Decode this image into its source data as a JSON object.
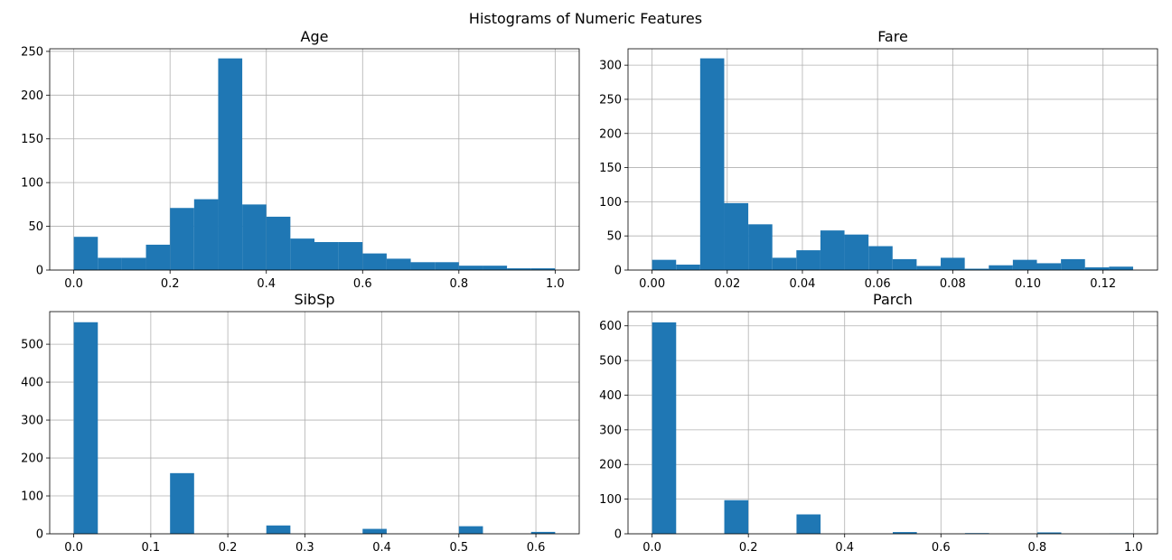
{
  "figure": {
    "title": "Histograms of Numeric Features",
    "bar_color": "#1f77b4",
    "grid_color": "#b0b0b0",
    "grid": true
  },
  "chart_data": [
    {
      "type": "bar",
      "title": "Age",
      "xlabel": "",
      "ylabel": "",
      "xlim": [
        -0.05,
        1.05
      ],
      "ylim": [
        0,
        253
      ],
      "xticks": [
        0.0,
        0.2,
        0.4,
        0.6,
        0.8,
        1.0
      ],
      "xtick_labels": [
        "0.0",
        "0.2",
        "0.4",
        "0.6",
        "0.8",
        "1.0"
      ],
      "yticks": [
        0,
        50,
        100,
        150,
        200,
        250
      ],
      "ytick_labels": [
        "0",
        "50",
        "100",
        "150",
        "200",
        "250"
      ],
      "bin_edges": [
        0.0,
        0.05,
        0.1,
        0.15,
        0.2,
        0.25,
        0.3,
        0.35,
        0.4,
        0.45,
        0.5,
        0.55,
        0.6,
        0.65,
        0.7,
        0.75,
        0.8,
        0.85,
        0.9,
        0.95,
        1.0
      ],
      "values": [
        38,
        14,
        14,
        29,
        71,
        81,
        242,
        75,
        61,
        36,
        32,
        32,
        19,
        13,
        9,
        9,
        5,
        5,
        2,
        2
      ]
    },
    {
      "type": "bar",
      "title": "Fare",
      "xlabel": "",
      "ylabel": "",
      "xlim": [
        -0.0064,
        0.1345
      ],
      "ylim": [
        0,
        324
      ],
      "xticks": [
        0.0,
        0.02,
        0.04,
        0.06,
        0.08,
        0.1,
        0.12
      ],
      "xtick_labels": [
        "0.00",
        "0.02",
        "0.04",
        "0.06",
        "0.08",
        "0.10",
        "0.12"
      ],
      "yticks": [
        0,
        50,
        100,
        150,
        200,
        250,
        300
      ],
      "ytick_labels": [
        "0",
        "50",
        "100",
        "150",
        "200",
        "250",
        "300"
      ],
      "bin_edges": [
        0.0,
        0.0064,
        0.0128,
        0.0192,
        0.0256,
        0.032,
        0.0384,
        0.0448,
        0.0512,
        0.0576,
        0.064,
        0.0704,
        0.0768,
        0.0832,
        0.0896,
        0.096,
        0.1024,
        0.1088,
        0.1152,
        0.1216,
        0.128
      ],
      "values": [
        15,
        8,
        310,
        98,
        67,
        18,
        29,
        58,
        52,
        35,
        16,
        6,
        18,
        2,
        7,
        15,
        10,
        16,
        4,
        5
      ]
    },
    {
      "type": "bar",
      "title": "SibSp",
      "xlabel": "",
      "ylabel": "",
      "xlim": [
        -0.03125,
        0.65625
      ],
      "ylim": [
        0,
        586
      ],
      "xticks": [
        0.0,
        0.1,
        0.2,
        0.3,
        0.4,
        0.5,
        0.6
      ],
      "xtick_labels": [
        "0.0",
        "0.1",
        "0.2",
        "0.3",
        "0.4",
        "0.5",
        "0.6"
      ],
      "yticks": [
        0,
        100,
        200,
        300,
        400,
        500
      ],
      "ytick_labels": [
        "0",
        "100",
        "200",
        "300",
        "400",
        "500"
      ],
      "bin_edges": [
        0.0,
        0.03125,
        0.0625,
        0.09375,
        0.125,
        0.15625,
        0.1875,
        0.21875,
        0.25,
        0.28125,
        0.3125,
        0.34375,
        0.375,
        0.40625,
        0.4375,
        0.46875,
        0.5,
        0.53125,
        0.5625,
        0.59375,
        0.625
      ],
      "values": [
        558,
        0,
        0,
        0,
        160,
        0,
        0,
        0,
        22,
        0,
        0,
        0,
        13,
        0,
        0,
        0,
        20,
        0,
        0,
        5
      ]
    },
    {
      "type": "bar",
      "title": "Parch",
      "xlabel": "",
      "ylabel": "",
      "xlim": [
        -0.05,
        1.05
      ],
      "ylim": [
        0,
        641
      ],
      "xticks": [
        0.0,
        0.2,
        0.4,
        0.6,
        0.8,
        1.0
      ],
      "xtick_labels": [
        "0.0",
        "0.2",
        "0.4",
        "0.6",
        "0.8",
        "1.0"
      ],
      "yticks": [
        0,
        100,
        200,
        300,
        400,
        500,
        600
      ],
      "ytick_labels": [
        "0",
        "100",
        "200",
        "300",
        "400",
        "500",
        "600"
      ],
      "bin_edges": [
        0.0,
        0.05,
        0.1,
        0.15,
        0.2,
        0.25,
        0.3,
        0.35,
        0.4,
        0.45,
        0.5,
        0.55,
        0.6,
        0.65,
        0.7,
        0.75,
        0.8,
        0.85,
        0.9,
        0.95,
        1.0
      ],
      "values": [
        610,
        0,
        0,
        97,
        0,
        0,
        56,
        0,
        0,
        0,
        5,
        0,
        0,
        2,
        0,
        0,
        4,
        0,
        0,
        1
      ]
    }
  ]
}
